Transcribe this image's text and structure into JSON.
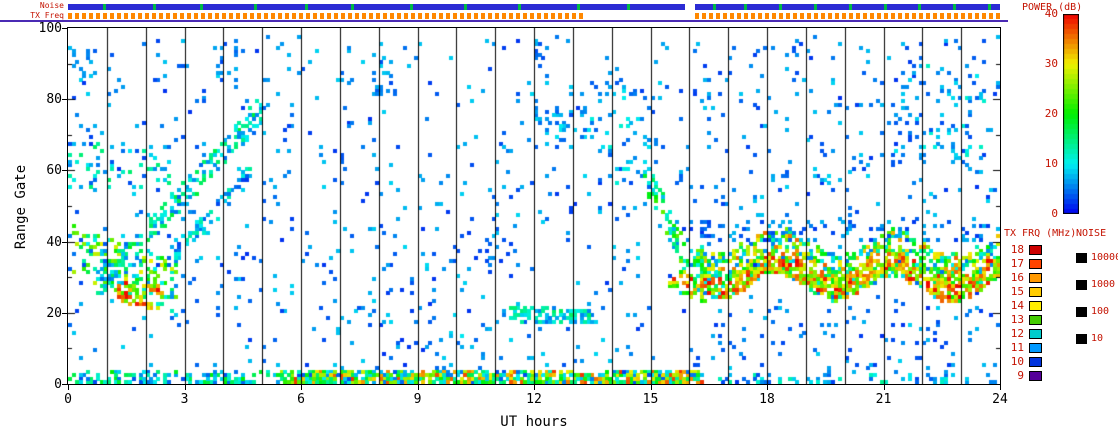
{
  "top_strips": {
    "noise_label": "Noise",
    "txfreq_label": "TX Freq",
    "noise_color": "#2b2bd4",
    "noise_tick_color": "#00bb44",
    "noise_segments": [
      [
        0,
        15.9
      ],
      [
        16.15,
        24
      ]
    ],
    "noise_green_ticks": [
      0.9,
      2.2,
      3.4,
      4.8,
      6.1,
      7.3,
      8.8,
      10.2,
      11.6,
      13.1,
      14.4,
      16.6,
      17.4,
      18.3,
      19.2,
      20.1,
      21.0,
      21.9,
      22.8,
      23.7
    ],
    "txfreq_color": "#ff8800",
    "txfreq_segments": [
      [
        0,
        13.35
      ],
      [
        16.15,
        24
      ]
    ],
    "divider_color": "#4a2ab4"
  },
  "legends": {
    "power": {
      "title": "POWER (dB)",
      "min": 0,
      "max": 40,
      "ticks": [
        40,
        30,
        20,
        10,
        0
      ]
    },
    "txfrq": {
      "title": "TX FRQ (MHz)",
      "entries": [
        {
          "label": "18",
          "color": "#cc0000"
        },
        {
          "label": "17",
          "color": "#ff4400"
        },
        {
          "label": "16",
          "color": "#ff9900"
        },
        {
          "label": "15",
          "color": "#ffcc00"
        },
        {
          "label": "14",
          "color": "#ffee00"
        },
        {
          "label": "13",
          "color": "#44cc00"
        },
        {
          "label": "12",
          "color": "#00cccc"
        },
        {
          "label": "11",
          "color": "#0099ff"
        },
        {
          "label": "10",
          "color": "#0033dd"
        },
        {
          "label": "9",
          "color": "#550099"
        }
      ]
    },
    "noise": {
      "title": "NOISE",
      "entries": [
        {
          "label": "10000",
          "color": "#000000"
        },
        {
          "label": "1000",
          "color": "#000000"
        },
        {
          "label": "100",
          "color": "#000000"
        },
        {
          "label": "10",
          "color": "#000000"
        }
      ]
    }
  },
  "chart_data": {
    "type": "heatmap",
    "title": "",
    "xlabel": "UT hours",
    "ylabel": "Range Gate",
    "xlim": [
      0,
      24
    ],
    "ylim": [
      0,
      100
    ],
    "xticks": [
      0,
      3,
      6,
      9,
      12,
      15,
      18,
      21,
      24
    ],
    "yticks": [
      0,
      20,
      40,
      60,
      80,
      100
    ],
    "hour_grid_lines": true,
    "cells_per_hour": 11,
    "colorbar": {
      "title": "POWER (dB)",
      "min": 0,
      "max": 40,
      "ticks": [
        0,
        10,
        20,
        30,
        40
      ]
    },
    "features": [
      {
        "name": "bottom-band-early",
        "x0": 0,
        "x1": 5.5,
        "y0": 1.5,
        "th": 4,
        "density": 28,
        "p0": 3,
        "p1": 20
      },
      {
        "name": "bottom-band-dense",
        "x0": 5.5,
        "x1": 16.3,
        "y0": 1.5,
        "th": 4,
        "density": 85,
        "p0": 3,
        "p1": 38,
        "bias": 0.9
      },
      {
        "name": "bottom-band-late",
        "x0": 16.3,
        "x1": 24,
        "y0": 1.0,
        "th": 3,
        "density": 10,
        "p0": 2,
        "p1": 14
      },
      {
        "name": "left-mass",
        "x0": 0.1,
        "x1": 2.8,
        "y0": 38,
        "y1": 27,
        "th": 14,
        "density": 55,
        "p0": 5,
        "p1": 30
      },
      {
        "name": "left-core",
        "x0": 1.3,
        "x1": 2.4,
        "y0": 26,
        "y1": 24,
        "th": 6,
        "density": 45,
        "p0": 22,
        "p1": 40
      },
      {
        "name": "rising-arc",
        "x0": 0.8,
        "x1": 5.0,
        "y0": 28,
        "y1": 77,
        "th": 7,
        "density": 45,
        "p0": 4,
        "p1": 18
      },
      {
        "name": "rising-arc-2",
        "x0": 2.5,
        "x1": 4.7,
        "y0": 33,
        "y1": 60,
        "th": 5,
        "density": 28,
        "p0": 4,
        "p1": 14
      },
      {
        "name": "left-upper-scatter",
        "x0": 0,
        "x1": 2.6,
        "y0": 55,
        "y1": 68,
        "uniform": true,
        "density": 22,
        "p0": 4,
        "p1": 16
      },
      {
        "name": "uniform-speckle",
        "x0": 0,
        "x1": 24,
        "y0": 3,
        "y1": 98,
        "uniform": true,
        "density": 32,
        "p0": 2,
        "p1": 9
      },
      {
        "name": "mid-speckle",
        "x0": 6.5,
        "x1": 11.5,
        "y0": 4,
        "y1": 45,
        "uniform": true,
        "density": 14,
        "p0": 2,
        "p1": 10
      },
      {
        "name": "noon-band",
        "x0": 11.4,
        "x1": 13.6,
        "y0": 20,
        "y1": 19,
        "th": 4,
        "density": 50,
        "p0": 5,
        "p1": 16
      },
      {
        "name": "noon-high-cluster",
        "x0": 11.8,
        "x1": 13.4,
        "y0": 66,
        "y1": 78,
        "uniform": true,
        "density": 25,
        "p0": 3,
        "p1": 10
      },
      {
        "name": "pre-dusk-cluster",
        "x0": 13.5,
        "x1": 15.2,
        "y0": 55,
        "y1": 85,
        "uniform": true,
        "density": 30,
        "p0": 3,
        "p1": 12
      },
      {
        "name": "dusk-descent",
        "x0": 14.9,
        "x1": 16.3,
        "y0": 58,
        "y1": 28,
        "th": 9,
        "density": 55,
        "p0": 5,
        "p1": 25
      },
      {
        "name": "dusk-core",
        "x0": 15.5,
        "x1": 16.4,
        "y0": 30,
        "y1": 25,
        "th": 6,
        "density": 40,
        "p0": 20,
        "p1": 40
      },
      {
        "name": "evening-band",
        "x0": 16.2,
        "x1": 24,
        "y0": 34,
        "y1": 33,
        "th": 13,
        "density": 110,
        "p0": 4,
        "p1": 36,
        "wobble": [
          3.5,
          3.0,
          1.0
        ],
        "bias": 0.9
      },
      {
        "name": "evening-core",
        "x0": 16.2,
        "x1": 24,
        "y0": 31,
        "y1": 30,
        "th": 6,
        "density": 60,
        "p0": 22,
        "p1": 40,
        "wobble": [
          3.5,
          3.0,
          1.0
        ]
      },
      {
        "name": "evening-fringe",
        "x0": 16.2,
        "x1": 24,
        "y0": 40,
        "y1": 46,
        "uniform": true,
        "density": 12,
        "p0": 2,
        "p1": 8
      },
      {
        "name": "evening-upper-speckle",
        "x0": 16,
        "x1": 24,
        "y0": 45,
        "y1": 97,
        "uniform": true,
        "density": 14,
        "p0": 2,
        "p1": 9
      },
      {
        "name": "late-upper-clump",
        "x0": 21.2,
        "x1": 23.9,
        "y0": 62,
        "y1": 90,
        "uniform": true,
        "density": 26,
        "p0": 3,
        "p1": 12
      },
      {
        "name": "evening-low-speckle",
        "x0": 16.3,
        "x1": 24,
        "y0": 5,
        "y1": 22,
        "uniform": true,
        "density": 7,
        "p0": 2,
        "p1": 8
      },
      {
        "name": "morning-high-clump-1",
        "x0": 3.8,
        "x1": 4.4,
        "y0": 84,
        "y1": 97,
        "uniform": true,
        "density": 30,
        "p0": 3,
        "p1": 9
      },
      {
        "name": "morning-high-clump-2",
        "x0": 7.8,
        "x1": 8.5,
        "y0": 80,
        "y1": 92,
        "uniform": true,
        "density": 28,
        "p0": 3,
        "p1": 9
      },
      {
        "name": "early-high-clump",
        "x0": 0.1,
        "x1": 0.7,
        "y0": 86,
        "y1": 94,
        "uniform": true,
        "density": 25,
        "p0": 3,
        "p1": 9
      },
      {
        "name": "hour12-top-clump",
        "x0": 11.9,
        "x1": 12.4,
        "y0": 88,
        "y1": 97,
        "uniform": true,
        "density": 20,
        "p0": 3,
        "p1": 8
      }
    ]
  }
}
